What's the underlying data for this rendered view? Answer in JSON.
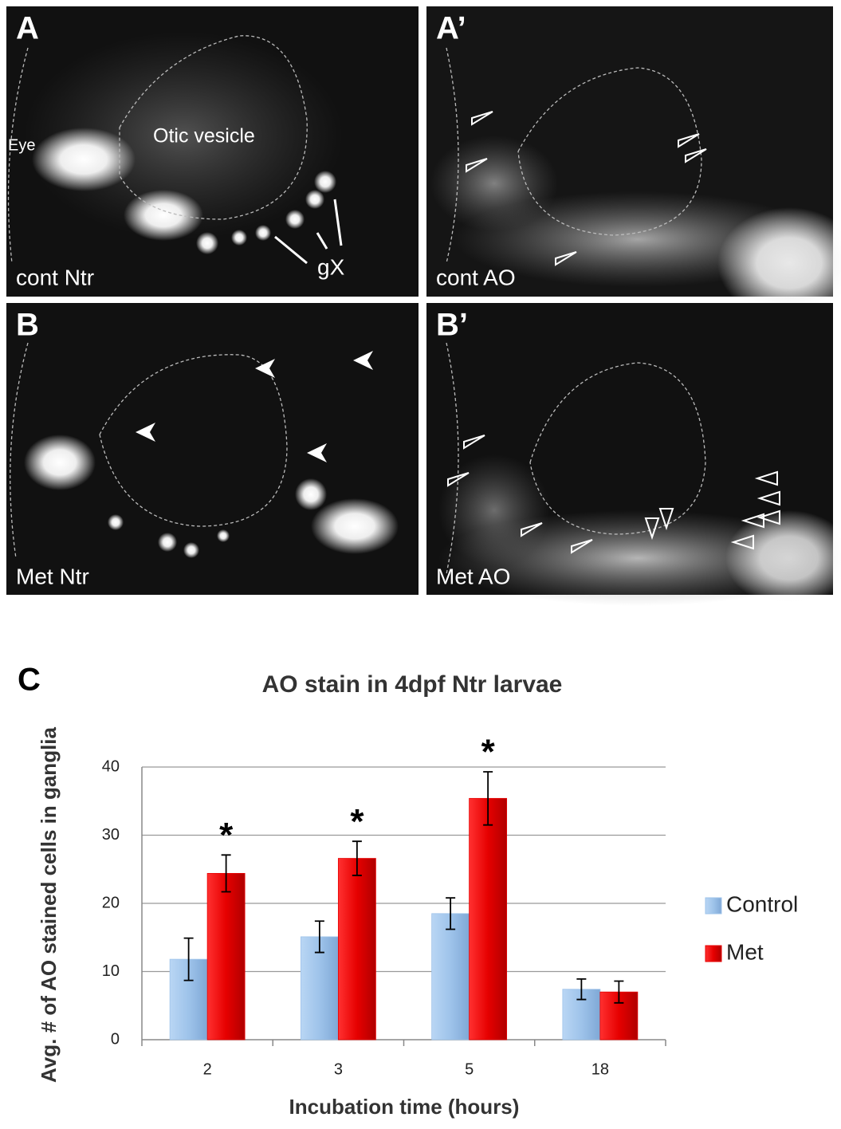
{
  "panels": [
    {
      "label": "A",
      "caption": "cont Ntr",
      "notes": [
        "Eye",
        "Otic vesicle",
        "gX"
      ]
    },
    {
      "label": "A’",
      "caption": "cont AO"
    },
    {
      "label": "B",
      "caption": "Met Ntr"
    },
    {
      "label": "B’",
      "caption": "Met AO"
    }
  ],
  "chart_data": {
    "type": "bar",
    "label": "C",
    "title": "AO stain in 4dpf Ntr larvae",
    "xlabel": "Incubation time (hours)",
    "ylabel": "Avg. # of AO stained cells in ganglia",
    "categories": [
      "2",
      "3",
      "5",
      "18"
    ],
    "series": [
      {
        "name": "Control",
        "color": "#9ec3ea",
        "values": [
          11.8,
          15.1,
          18.5,
          7.4
        ],
        "errors": [
          3.1,
          2.3,
          2.3,
          1.5
        ]
      },
      {
        "name": "Met",
        "color": "#e60000",
        "values": [
          24.4,
          26.6,
          35.4,
          7.0
        ],
        "errors": [
          2.7,
          2.5,
          3.9,
          1.6
        ]
      }
    ],
    "significance": [
      "*",
      "*",
      "*",
      null
    ],
    "ylim": [
      0,
      40
    ],
    "yticks": [
      0,
      10,
      20,
      30,
      40
    ],
    "grid": true,
    "legend": "right"
  }
}
